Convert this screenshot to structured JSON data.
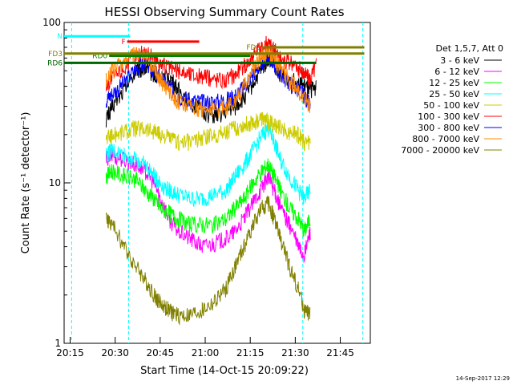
{
  "chart_data": {
    "type": "line",
    "title": "HESSI Observing Summary Count Rates",
    "xlabel": "Start Time (14-Oct-15 20:09:22)",
    "ylabel": "Count Rate (s⁻¹ detector⁻¹)",
    "y_scale": "log",
    "ylim": [
      1,
      100
    ],
    "y_ticks": [
      {
        "value": 1,
        "label": "1"
      },
      {
        "value": 10,
        "label": "10"
      },
      {
        "value": 100,
        "label": "100"
      }
    ],
    "xlim_minutes": [
      -2,
      50
    ],
    "x_ticks": [
      {
        "value": 6,
        "label": "20:15"
      },
      {
        "value": 21,
        "label": "20:30"
      },
      {
        "value": 36,
        "label": "20:45"
      },
      {
        "value": 51,
        "label": "21:00"
      },
      {
        "value": 66,
        "label": "21:15"
      },
      {
        "value": 81,
        "label": "21:30"
      },
      {
        "value": 96,
        "label": "21:45"
      }
    ],
    "x_range_minutes": [
      -2,
      100
    ],
    "legend_header": "Det 1,5,7, Att 0",
    "legend_position": "right",
    "series": [
      {
        "name": "3 - 6 keV",
        "color": "#000000",
        "x": [
          12,
          14,
          18,
          22,
          25,
          28,
          30,
          33,
          36,
          40,
          44,
          48,
          52,
          55,
          58,
          61,
          64,
          66,
          68,
          70,
          73,
          76,
          78,
          80,
          82
        ],
        "y": [
          25,
          30,
          38,
          50,
          52,
          48,
          45,
          46,
          38,
          32,
          28,
          26,
          28,
          30,
          34,
          42,
          52,
          60,
          55,
          48,
          44,
          42,
          40,
          38,
          40
        ]
      },
      {
        "name": "6 - 12 keV",
        "color": "#ff00ff",
        "x": [
          12,
          14,
          18,
          22,
          25,
          28,
          30,
          33,
          36,
          40,
          44,
          48,
          52,
          55,
          58,
          61,
          64,
          66,
          68,
          70,
          73,
          76,
          78,
          80
        ],
        "y": [
          14,
          15,
          14,
          13,
          12,
          10,
          8,
          6,
          5,
          4.5,
          4,
          4.2,
          4.5,
          5,
          6,
          7.5,
          9.5,
          11,
          9,
          7,
          5.5,
          4,
          3.5,
          5
        ]
      },
      {
        "name": "12 - 25 keV",
        "color": "#00ff00",
        "x": [
          12,
          14,
          18,
          22,
          25,
          28,
          30,
          33,
          36,
          40,
          44,
          48,
          52,
          55,
          58,
          61,
          64,
          66,
          68,
          70,
          73,
          76,
          78,
          80
        ],
        "y": [
          11,
          12,
          11,
          10.5,
          9,
          8,
          7,
          6.5,
          6,
          5.5,
          5.5,
          5.5,
          6,
          7,
          8,
          10,
          12,
          13,
          11,
          9,
          7,
          6,
          5,
          6
        ]
      },
      {
        "name": "25 - 50 keV",
        "color": "#00ffff",
        "x": [
          12,
          14,
          18,
          22,
          25,
          28,
          30,
          33,
          36,
          40,
          44,
          48,
          52,
          55,
          58,
          61,
          64,
          66,
          68,
          70,
          73,
          76,
          78,
          80
        ],
        "y": [
          15,
          16,
          15,
          14,
          13,
          11,
          10,
          9,
          8.5,
          8,
          8,
          8.5,
          9,
          11,
          13,
          16,
          20,
          22,
          18,
          14,
          11,
          9,
          8,
          9
        ]
      },
      {
        "name": "50 - 100 keV",
        "color": "#cccc00",
        "x": [
          12,
          14,
          18,
          22,
          25,
          28,
          30,
          33,
          36,
          40,
          44,
          48,
          52,
          55,
          58,
          61,
          64,
          66,
          68,
          70,
          73,
          76,
          78,
          80
        ],
        "y": [
          19,
          20,
          21,
          22,
          22,
          21,
          20,
          19,
          18,
          18,
          19,
          20,
          21,
          22,
          23,
          24,
          25,
          24,
          23,
          22,
          21,
          20,
          18,
          18
        ]
      },
      {
        "name": "100 - 300 keV",
        "color": "#ff0000",
        "x": [
          12,
          14,
          18,
          22,
          25,
          28,
          30,
          33,
          36,
          40,
          44,
          48,
          52,
          55,
          58,
          61,
          64,
          66,
          68,
          70,
          73,
          76,
          78,
          80,
          82
        ],
        "y": [
          40,
          45,
          52,
          62,
          66,
          60,
          56,
          52,
          50,
          48,
          46,
          45,
          44,
          48,
          54,
          62,
          70,
          75,
          68,
          60,
          56,
          52,
          48,
          45,
          55
        ]
      },
      {
        "name": "300 - 800 keV",
        "color": "#0000ff",
        "x": [
          12,
          14,
          18,
          22,
          25,
          28,
          30,
          33,
          36,
          40,
          44,
          48,
          52,
          55,
          58,
          61,
          64,
          66,
          68,
          70,
          73,
          76,
          78,
          80
        ],
        "y": [
          33,
          36,
          42,
          52,
          55,
          50,
          45,
          40,
          35,
          33,
          32,
          32,
          33,
          35,
          40,
          48,
          56,
          62,
          55,
          48,
          42,
          38,
          35,
          30
        ]
      },
      {
        "name": "800 - 7000 keV",
        "color": "#ff8800",
        "x": [
          12,
          14,
          18,
          22,
          25,
          28,
          30,
          33,
          36,
          40,
          44,
          48,
          52,
          55,
          58,
          61,
          64,
          66,
          68,
          70,
          73,
          76,
          78,
          80
        ],
        "y": [
          44,
          50,
          58,
          64,
          60,
          52,
          44,
          38,
          32,
          30,
          29,
          29,
          30,
          33,
          40,
          52,
          62,
          66,
          60,
          52,
          44,
          38,
          34,
          30
        ]
      },
      {
        "name": "7000 - 20000 keV",
        "color": "#808000",
        "x": [
          12,
          14,
          18,
          22,
          25,
          28,
          30,
          33,
          36,
          40,
          44,
          48,
          52,
          55,
          58,
          61,
          64,
          66,
          68,
          70,
          73,
          76,
          78,
          80
        ],
        "y": [
          6,
          5.5,
          4,
          3,
          2.5,
          2,
          1.8,
          1.6,
          1.5,
          1.5,
          1.6,
          1.8,
          2.2,
          3,
          4,
          5.5,
          7,
          7.5,
          6,
          4.5,
          3,
          2.2,
          1.6,
          1.5
        ]
      }
    ],
    "flags": [
      {
        "name": "N",
        "color": "#00ffff",
        "x_start": -2,
        "x_end": 20,
        "y": 82
      },
      {
        "name": "F",
        "color": "#ff0000",
        "x_start": 19,
        "x_end": 43,
        "y": 76
      },
      {
        "name": "RD0",
        "color": "#008000",
        "x_start": 13,
        "x_end": 60,
        "y": 62
      },
      {
        "name": "RD6",
        "color": "#006400",
        "x_start": -2,
        "x_end": 82,
        "y": 56
      },
      {
        "name": "FD2",
        "color": "#808000",
        "x_start": 64,
        "x_end": 98,
        "y": 70
      },
      {
        "name": "FD3",
        "color": "#808000",
        "x_start": -2,
        "x_end": 98,
        "y": 64
      }
    ],
    "grid": false
  },
  "footer_timestamp": "14-Sep-2017 12:29"
}
